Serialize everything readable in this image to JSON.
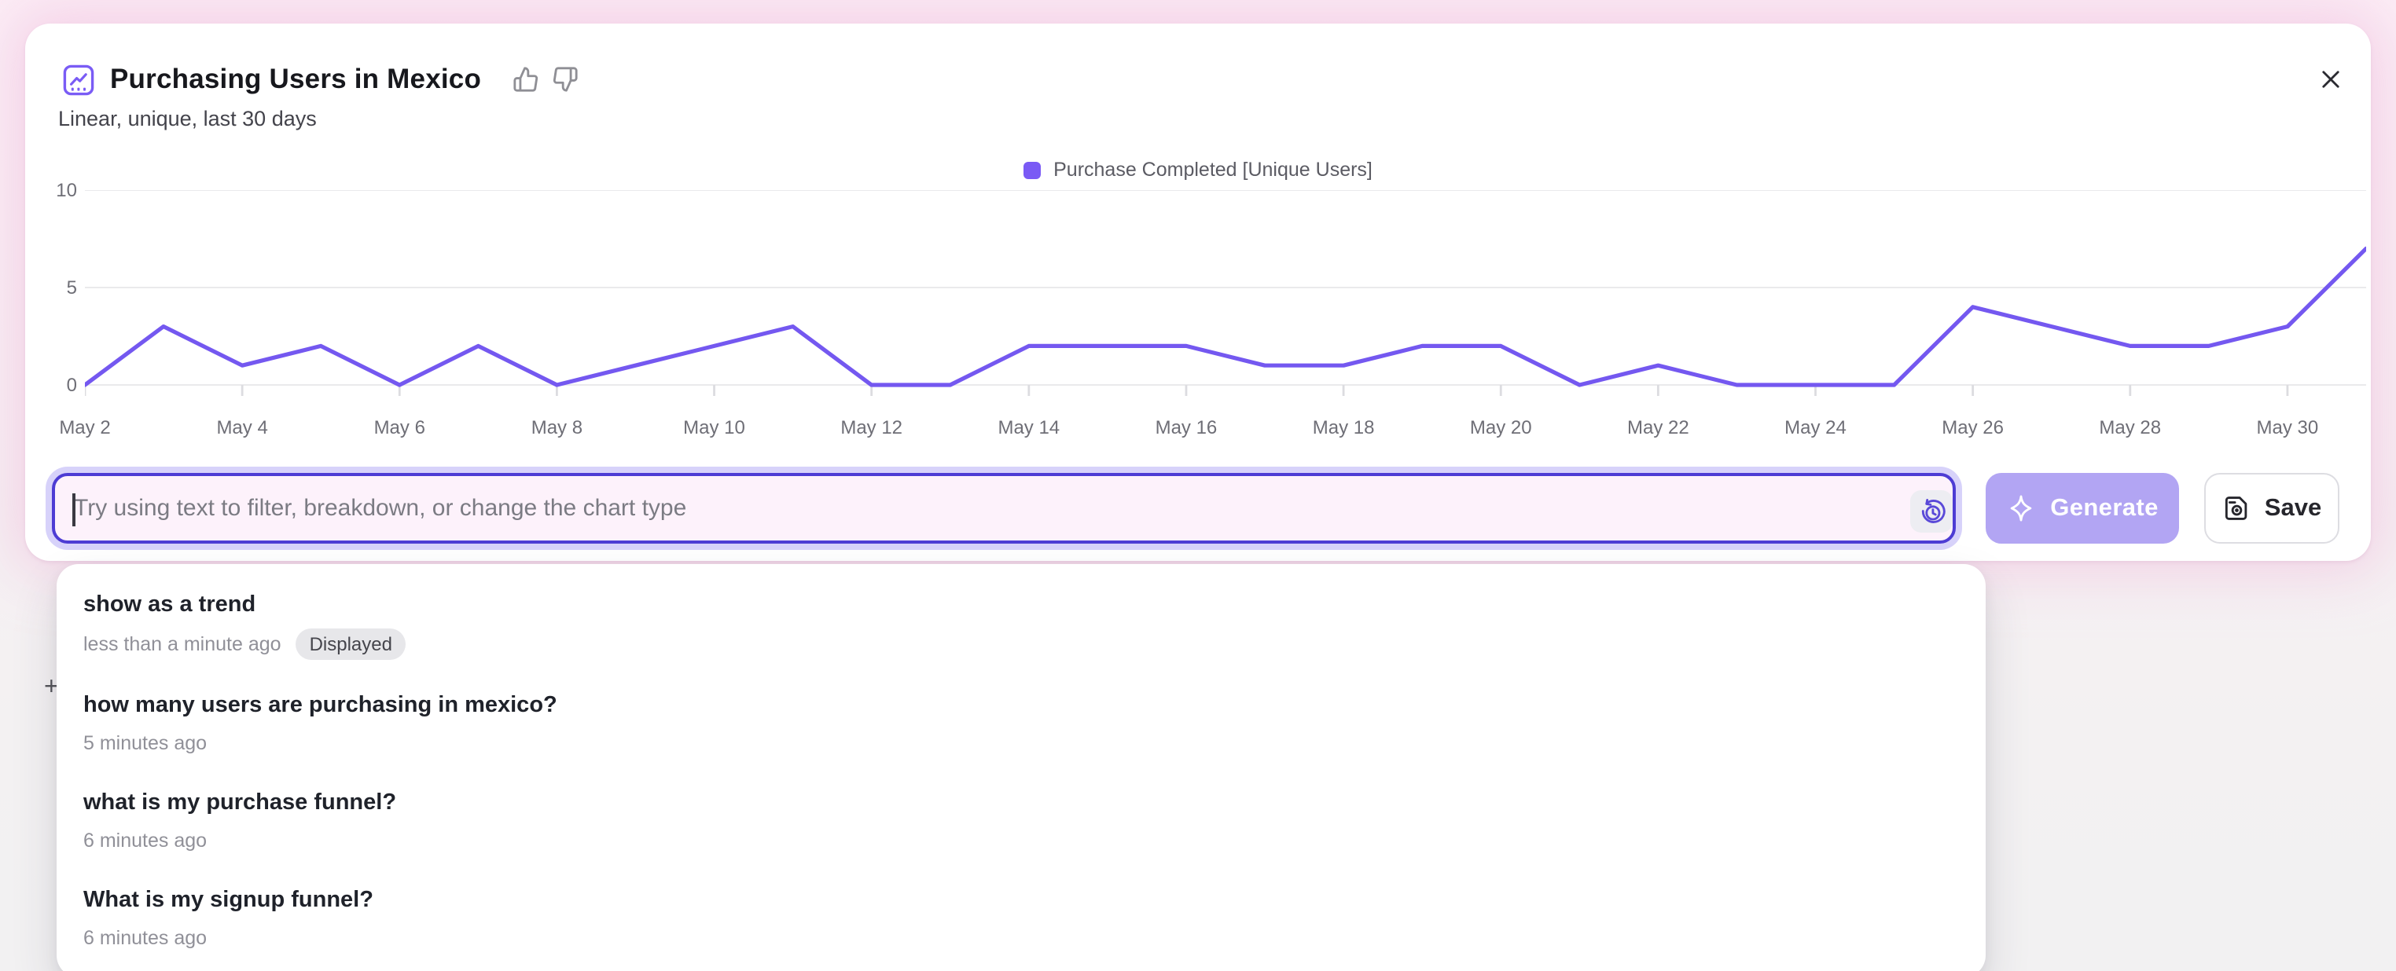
{
  "header": {
    "title": "Purchasing Users in Mexico",
    "subtitle": "Linear, unique, last 30 days"
  },
  "legend": {
    "label": "Purchase Completed [Unique Users]",
    "color": "#7a5af5"
  },
  "chart_data": {
    "type": "line",
    "title": "Purchasing Users in Mexico",
    "x": [
      "May 2",
      "May 3",
      "May 4",
      "May 5",
      "May 6",
      "May 7",
      "May 8",
      "May 9",
      "May 10",
      "May 11",
      "May 12",
      "May 13",
      "May 14",
      "May 15",
      "May 16",
      "May 17",
      "May 18",
      "May 19",
      "May 20",
      "May 21",
      "May 22",
      "May 23",
      "May 24",
      "May 25",
      "May 26",
      "May 27",
      "May 28",
      "May 29",
      "May 30",
      "May 31"
    ],
    "series": [
      {
        "name": "Purchase Completed [Unique Users]",
        "values": [
          0,
          3,
          1,
          2,
          0,
          2,
          0,
          1,
          2,
          3,
          0,
          0,
          2,
          2,
          2,
          1,
          1,
          2,
          2,
          0,
          1,
          0,
          0,
          0,
          4,
          3,
          2,
          2,
          3,
          7
        ]
      }
    ],
    "xticklabels": [
      "May 2",
      "May 4",
      "May 6",
      "May 8",
      "May 10",
      "May 12",
      "May 14",
      "May 16",
      "May 18",
      "May 20",
      "May 22",
      "May 24",
      "May 26",
      "May 28",
      "May 30"
    ],
    "yticks": [
      0,
      5,
      10
    ],
    "ylim": [
      0,
      10
    ],
    "grid": true,
    "legend_position": "top-center",
    "line_color": "#7458f0",
    "grid_color": "#eaeaec",
    "tick_color": "#dcdce0"
  },
  "prompt_bar": {
    "placeholder": "Try using text to filter, breakdown, or change the chart type",
    "value": "",
    "generate_label": "Generate",
    "save_label": "Save"
  },
  "history_dropdown": {
    "items": [
      {
        "title": "show as a trend",
        "time": "less than a minute ago",
        "badge": "Displayed"
      },
      {
        "title": "how many users are purchasing in mexico?",
        "time": "5 minutes ago",
        "badge": ""
      },
      {
        "title": "what is my purchase funnel?",
        "time": "6 minutes ago",
        "badge": ""
      },
      {
        "title": "What is my signup funnel?",
        "time": "6 minutes ago",
        "badge": ""
      }
    ]
  },
  "background": {
    "plus_glyph": "+"
  }
}
